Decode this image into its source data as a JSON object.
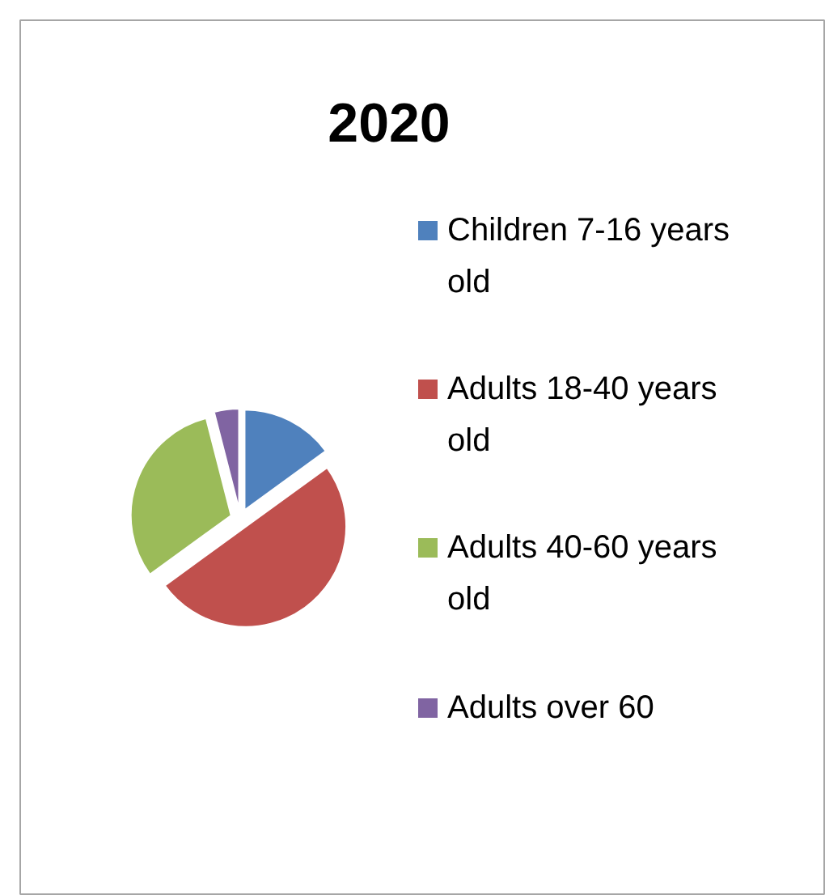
{
  "chart_data": {
    "type": "pie",
    "title": "2020",
    "categories": [
      "Children 7-16 years old",
      "Adults 18-40 years old",
      "Adults 40-60 years old",
      "Adults over 60"
    ],
    "values": [
      15,
      50,
      31,
      4
    ],
    "colors": [
      "#4f81bd",
      "#c0504d",
      "#9bbb59",
      "#8064a2"
    ],
    "legend": "right"
  }
}
